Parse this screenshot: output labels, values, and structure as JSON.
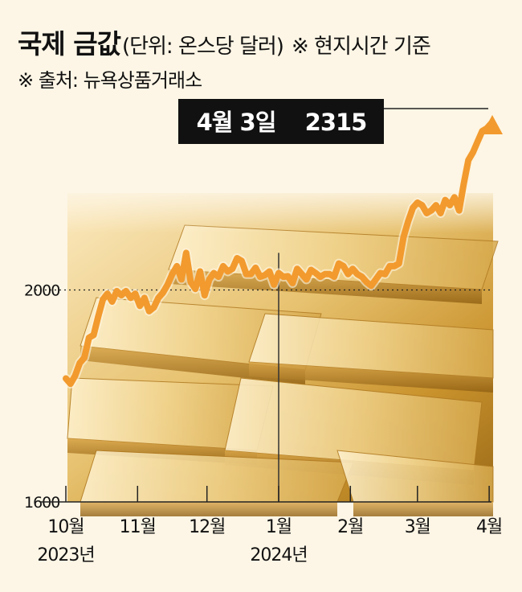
{
  "header": {
    "title": "국제 금값",
    "unit": "(단위: 온스당 달러)",
    "note": "※ 현지시간 기준",
    "source": "※ 출처: 뉴욕상품거래소"
  },
  "callout": {
    "date_label": "4월 3일",
    "value_label": "2315"
  },
  "colors": {
    "line": "#f29a2e",
    "callout_bg": "#111111",
    "callout_text": "#ffffff",
    "gold_light": "#f4dfa8",
    "gold_dark": "#b8860b"
  },
  "chart_data": {
    "type": "line",
    "x_unit": "days since 2023-10-01",
    "ylim": [
      1600,
      2350
    ],
    "y_ticks": [
      1600,
      2000
    ],
    "x_ticks": [
      {
        "x": 0,
        "label": "10월",
        "year": "2023년"
      },
      {
        "x": 31,
        "label": "11월",
        "year": ""
      },
      {
        "x": 61,
        "label": "12월",
        "year": ""
      },
      {
        "x": 92,
        "label": "1월",
        "year": "2024년"
      },
      {
        "x": 123,
        "label": "2월",
        "year": ""
      },
      {
        "x": 152,
        "label": "3월",
        "year": ""
      },
      {
        "x": 183,
        "label": "4월",
        "year": ""
      }
    ],
    "year_divider_x": 92,
    "series": [
      {
        "x": [
          0,
          2,
          4,
          6,
          8,
          10,
          12,
          14,
          16,
          18,
          20,
          22,
          24,
          26,
          28,
          30,
          32,
          34,
          36,
          38,
          40,
          42,
          44,
          46,
          48,
          50,
          52,
          54,
          56,
          58,
          60,
          62,
          64,
          66,
          68,
          70,
          72,
          74,
          76,
          78,
          80,
          82,
          84,
          86,
          88,
          90,
          92,
          94,
          96,
          98,
          100,
          102,
          104,
          106,
          108,
          110,
          112,
          114,
          116,
          118,
          120,
          122,
          124,
          126,
          128,
          130,
          132,
          134,
          136,
          138,
          140,
          142,
          144,
          146,
          148,
          150,
          152,
          154,
          156,
          158,
          160,
          162,
          164,
          166,
          168,
          170,
          172,
          174,
          176,
          178,
          180,
          182,
          184
        ],
        "y": [
          1833,
          1823,
          1838,
          1862,
          1872,
          1910,
          1915,
          1950,
          1982,
          1993,
          1978,
          1998,
          1990,
          1998,
          1985,
          1993,
          1970,
          1985,
          1960,
          1967,
          1985,
          1995,
          2010,
          2030,
          2045,
          2020,
          2070,
          2015,
          2002,
          2035,
          1990,
          2020,
          2032,
          2025,
          2045,
          2035,
          2040,
          2060,
          2055,
          2030,
          2030,
          2042,
          2025,
          2028,
          2035,
          2010,
          2032,
          2025,
          2026,
          2013,
          2040,
          2030,
          2020,
          2038,
          2032,
          2025,
          2030,
          2030,
          2025,
          2050,
          2045,
          2030,
          2040,
          2030,
          2025,
          2015,
          2008,
          2020,
          2032,
          2030,
          2045,
          2045,
          2050,
          2100,
          2130,
          2155,
          2165,
          2160,
          2145,
          2150,
          2160,
          2145,
          2170,
          2160,
          2175,
          2150,
          2200,
          2245,
          2260,
          2280,
          2300,
          2305,
          2315
        ]
      }
    ]
  }
}
